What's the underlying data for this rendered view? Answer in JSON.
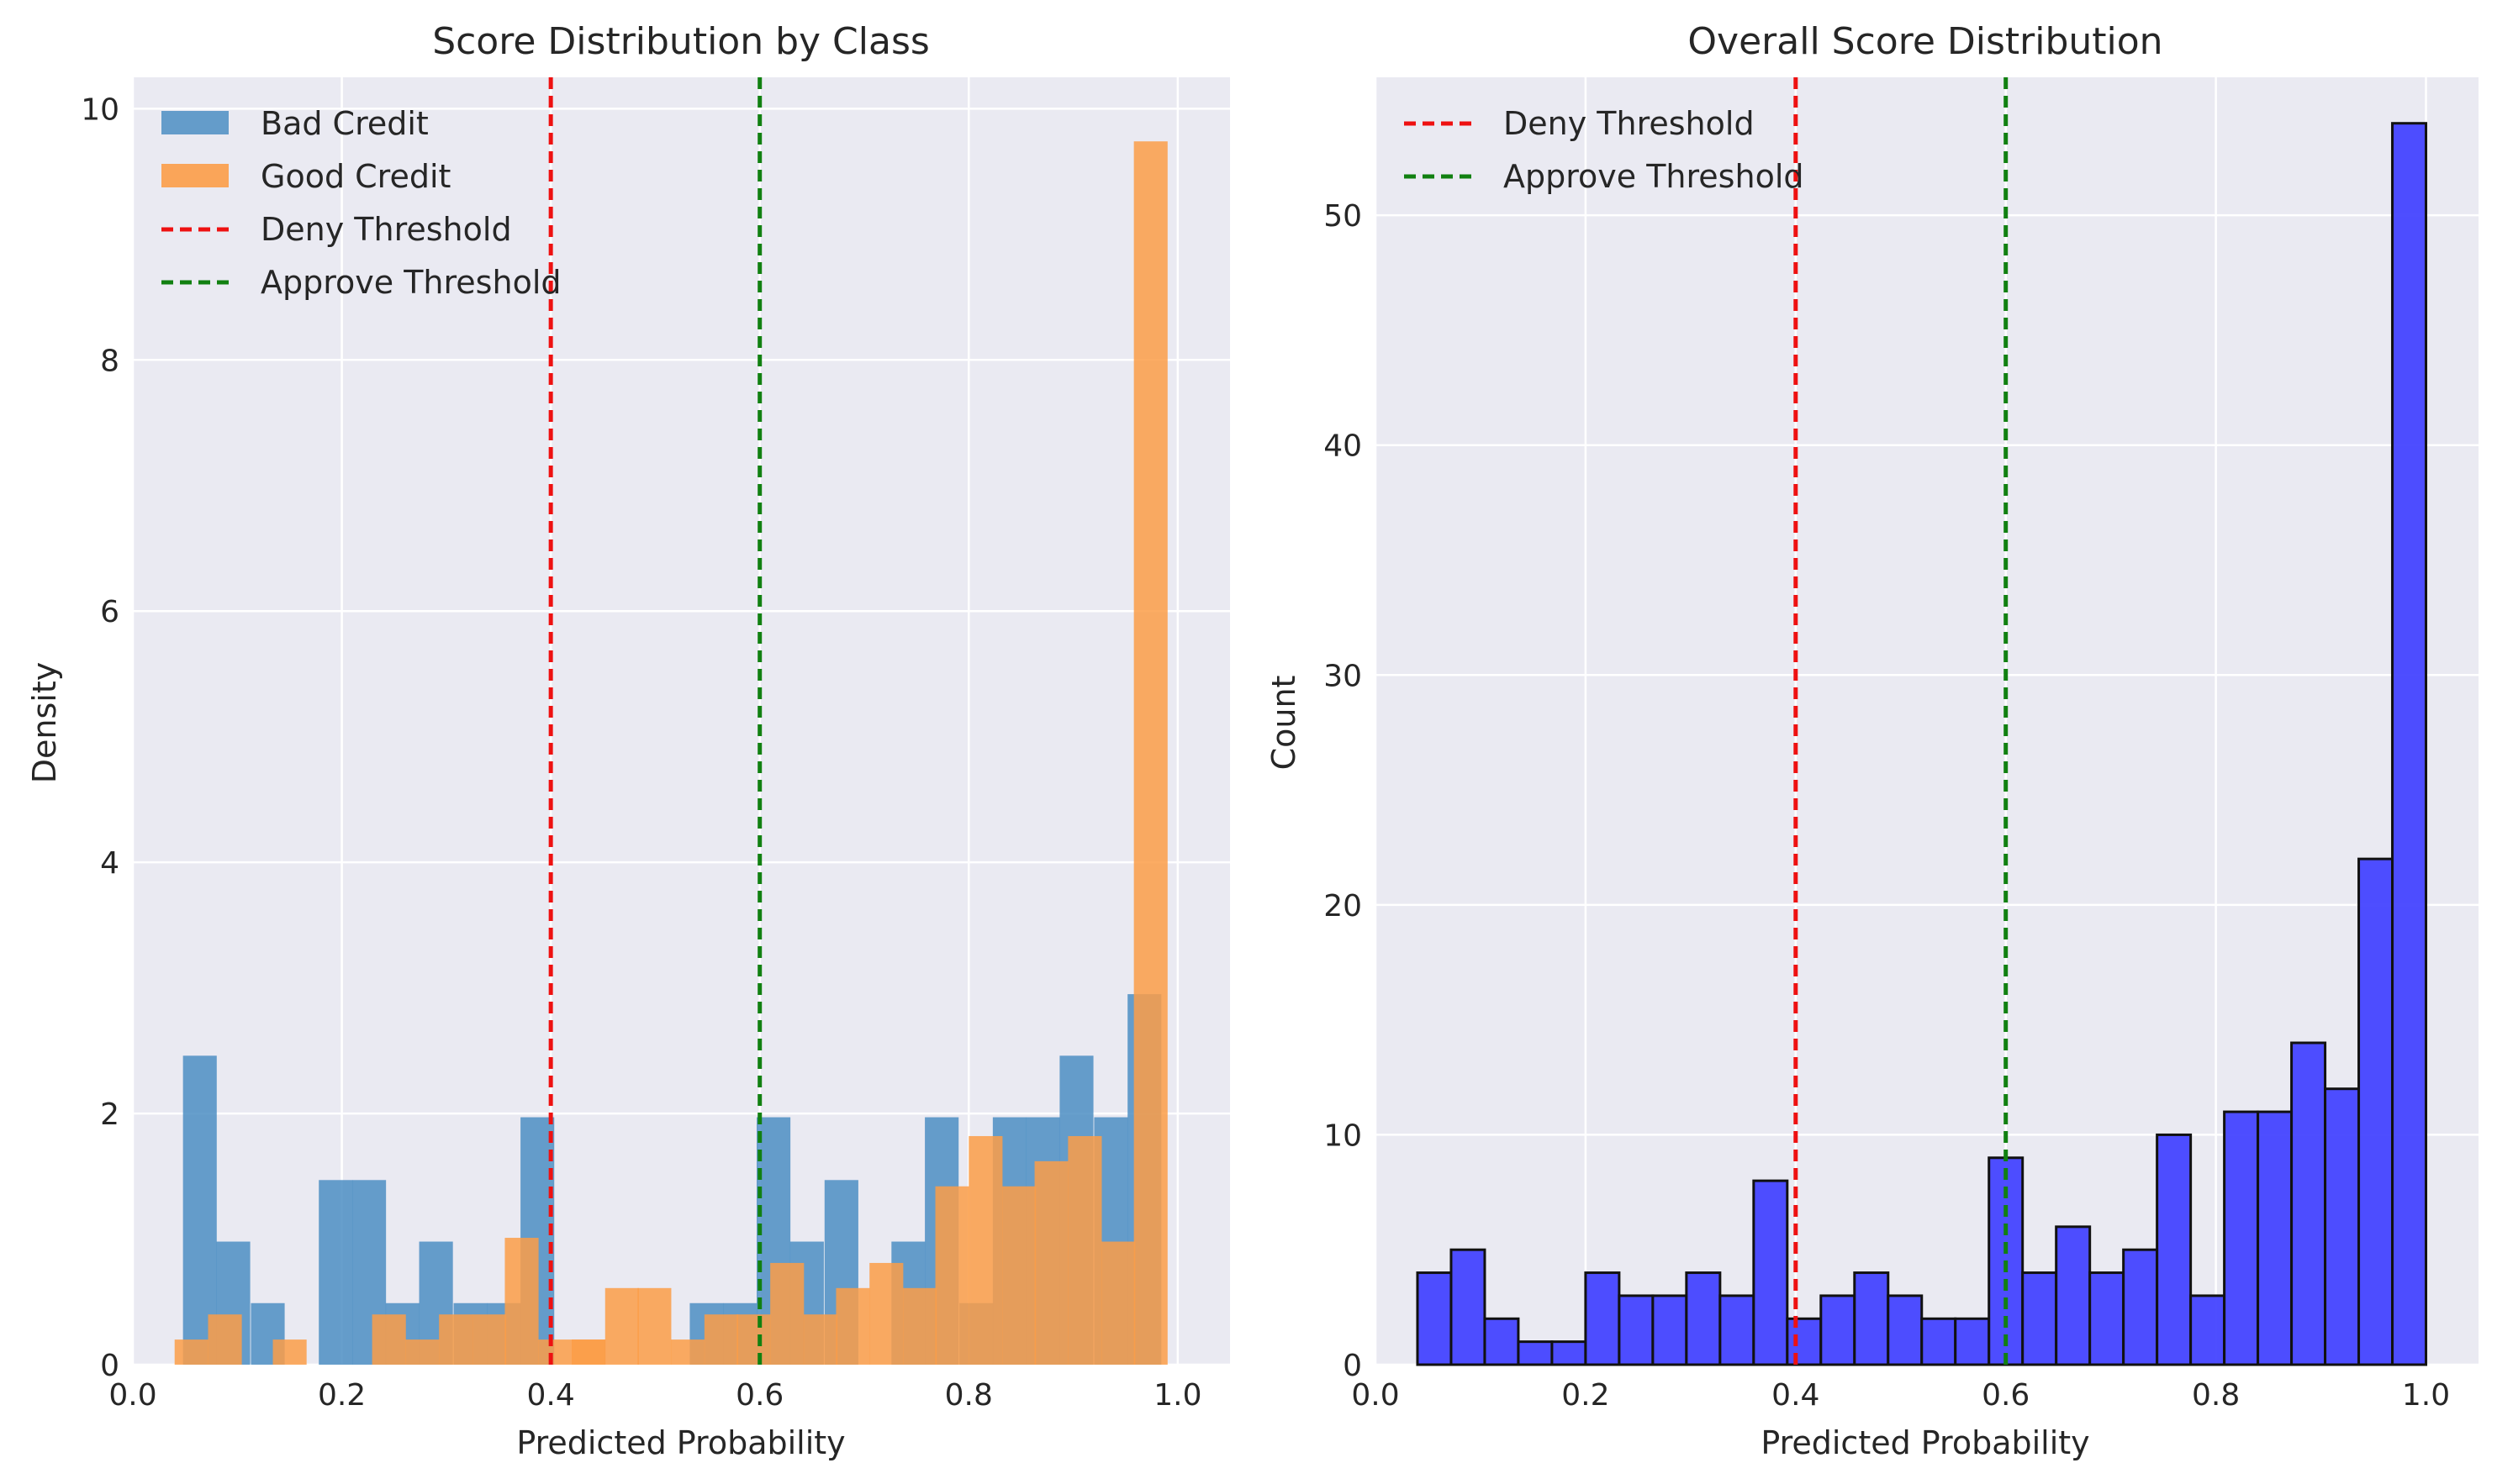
{
  "colors": {
    "background": "#eaeaf2",
    "grid": "#ffffff",
    "bad": "#4c8ec3",
    "good": "#fc9d48",
    "overlap": "#d98a3e",
    "overall": "#4444ff",
    "deny": "#ee1111",
    "approve": "#118011"
  },
  "chart_data": [
    {
      "type": "bar",
      "title": "Score Distribution by Class",
      "xlabel": "Predicted Probability",
      "ylabel": "Density",
      "xlim": [
        0.0,
        1.05
      ],
      "ylim": [
        0,
        10.25
      ],
      "xticks": [
        "0.0",
        "0.2",
        "0.4",
        "0.6",
        "0.8",
        "1.0"
      ],
      "yticks": [
        "0",
        "2",
        "4",
        "6",
        "8",
        "10"
      ],
      "grid": true,
      "legend_position": "top-left",
      "bin_width": 0.0323,
      "series": [
        {
          "name": "Bad Credit",
          "bin_starts": [
            0.048,
            0.08,
            0.113,
            0.178,
            0.21,
            0.242,
            0.274,
            0.307,
            0.339,
            0.371,
            0.533,
            0.565,
            0.597,
            0.629,
            0.662,
            0.726,
            0.758,
            0.791,
            0.823,
            0.855,
            0.887,
            0.92,
            0.952
          ],
          "values": [
            2.46,
            0.98,
            0.49,
            1.47,
            1.47,
            0.49,
            0.98,
            0.49,
            0.49,
            1.97,
            0.49,
            0.49,
            1.97,
            0.98,
            1.47,
            0.98,
            1.97,
            0.49,
            1.97,
            1.97,
            2.46,
            1.97,
            2.95
          ]
        },
        {
          "name": "Good Credit",
          "bin_starts": [
            0.04,
            0.072,
            0.134,
            0.229,
            0.261,
            0.293,
            0.325,
            0.356,
            0.388,
            0.42,
            0.42,
            0.452,
            0.483,
            0.515,
            0.547,
            0.578,
            0.61,
            0.642,
            0.673,
            0.705,
            0.737,
            0.768,
            0.8,
            0.832,
            0.863,
            0.895,
            0.927,
            0.958
          ],
          "values": [
            0.2,
            0.4,
            0.2,
            0.4,
            0.2,
            0.4,
            0.4,
            1.01,
            0.2,
            0.2,
            0.2,
            0.61,
            0.61,
            0.2,
            0.4,
            0.4,
            0.81,
            0.4,
            0.61,
            0.81,
            0.61,
            1.42,
            1.82,
            1.42,
            1.62,
            1.82,
            0.98,
            9.74
          ]
        }
      ],
      "lines": [
        {
          "name": "Deny Threshold",
          "x": 0.4
        },
        {
          "name": "Approve Threshold",
          "x": 0.6
        }
      ]
    },
    {
      "type": "bar",
      "title": "Overall Score Distribution",
      "xlabel": "Predicted Probability",
      "ylabel": "Count",
      "xlim": [
        0.0,
        1.05
      ],
      "ylim": [
        0,
        56
      ],
      "xticks": [
        "0.0",
        "0.2",
        "0.4",
        "0.6",
        "0.8",
        "1.0"
      ],
      "yticks": [
        "0",
        "10",
        "20",
        "30",
        "40",
        "50"
      ],
      "grid": true,
      "legend_position": "top-left",
      "bin_start": 0.04,
      "bin_width": 0.032,
      "values": [
        4,
        5,
        2,
        1,
        1,
        4,
        3,
        3,
        4,
        3,
        8,
        2,
        3,
        4,
        3,
        2,
        2,
        9,
        4,
        6,
        4,
        5,
        10,
        3,
        11,
        11,
        14,
        12,
        22,
        54
      ],
      "lines": [
        {
          "name": "Deny Threshold",
          "x": 0.4
        },
        {
          "name": "Approve Threshold",
          "x": 0.6
        }
      ]
    }
  ]
}
